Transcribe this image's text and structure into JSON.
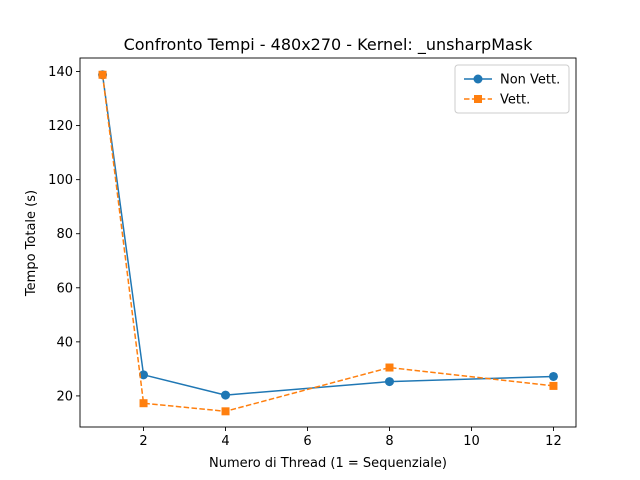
{
  "chart_data": {
    "type": "line",
    "title": "Confronto Tempi - 480x270 - Kernel: _unsharpMask",
    "xlabel": "Numero di Thread (1 = Sequenziale)",
    "ylabel": "Tempo Totale (s)",
    "xlim": [
      0.45,
      12.55
    ],
    "ylim": [
      8.5,
      145
    ],
    "xticks": [
      2,
      4,
      6,
      8,
      10,
      12
    ],
    "yticks": [
      20,
      40,
      60,
      80,
      100,
      120,
      140
    ],
    "grid": false,
    "legend_position": "top-right",
    "series": [
      {
        "name": "Non Vett.",
        "color": "#1f77b4",
        "marker": "circle",
        "linestyle": "solid",
        "x": [
          1,
          2,
          4,
          8,
          12
        ],
        "y": [
          138.8,
          27.8,
          20.3,
          25.3,
          27.2
        ]
      },
      {
        "name": "Vett.",
        "color": "#ff7f0e",
        "marker": "square",
        "linestyle": "dashed",
        "x": [
          1,
          2,
          4,
          8,
          12
        ],
        "y": [
          138.8,
          17.3,
          14.3,
          30.5,
          23.7
        ]
      }
    ]
  }
}
